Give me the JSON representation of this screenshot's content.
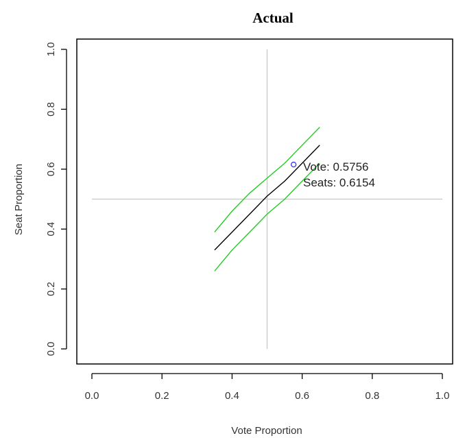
{
  "chart_data": {
    "type": "line",
    "title": "Actual",
    "xlabel": "Vote Proportion",
    "ylabel": "Seat Proportion",
    "xlim": [
      0,
      1
    ],
    "ylim": [
      0,
      1
    ],
    "xticks": [
      "0.0",
      "0.2",
      "0.4",
      "0.6",
      "0.8",
      "1.0"
    ],
    "yticks": [
      "0.0",
      "0.2",
      "0.4",
      "0.6",
      "0.8",
      "1.0"
    ],
    "reference_lines": {
      "x": 0.5,
      "y": 0.5,
      "color": "#c8c8c8"
    },
    "series": [
      {
        "color": "#000000",
        "x": [
          0.35,
          0.4,
          0.45,
          0.5,
          0.55,
          0.6,
          0.65
        ],
        "y": [
          0.33,
          0.39,
          0.45,
          0.51,
          0.56,
          0.62,
          0.68
        ]
      },
      {
        "color": "#22cc22",
        "x": [
          0.35,
          0.4,
          0.45,
          0.5,
          0.55,
          0.6,
          0.65
        ],
        "y": [
          0.39,
          0.46,
          0.52,
          0.57,
          0.62,
          0.68,
          0.74
        ]
      },
      {
        "color": "#22cc22",
        "x": [
          0.35,
          0.4,
          0.45,
          0.5,
          0.55,
          0.6,
          0.65
        ],
        "y": [
          0.26,
          0.33,
          0.39,
          0.45,
          0.5,
          0.56,
          0.62
        ]
      }
    ],
    "point": {
      "x": 0.5756,
      "y": 0.6154,
      "color": "#3333ff"
    },
    "annotations": [
      "Vote: 0.5756",
      "Seats: 0.6154"
    ]
  }
}
